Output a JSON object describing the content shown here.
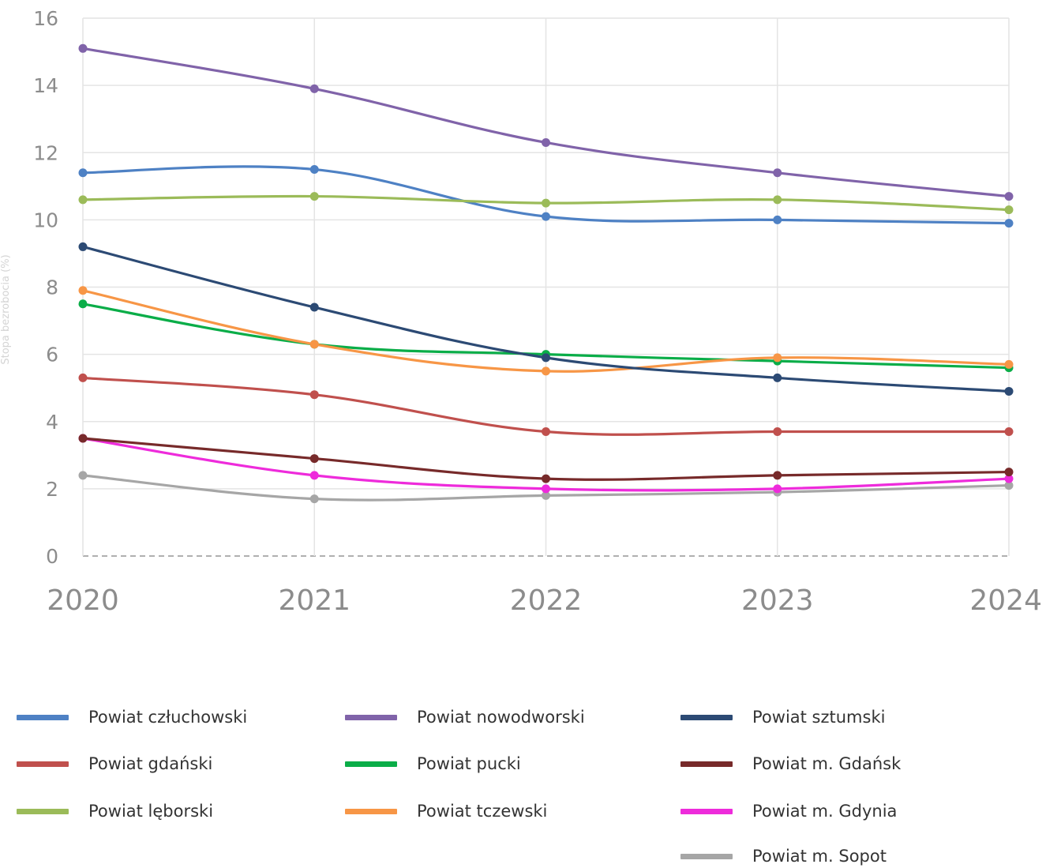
{
  "chart_data": {
    "type": "line",
    "ylabel": "Stopa bezrobocia (%)",
    "xlabel": "",
    "x": [
      "2020",
      "2021",
      "2022",
      "2023",
      "2024"
    ],
    "ylim": [
      0,
      16
    ],
    "yticks": [
      "0",
      "2",
      "4",
      "6",
      "8",
      "10",
      "12",
      "14",
      "16"
    ],
    "grid": true,
    "legend_position": "bottom",
    "series": [
      {
        "name": "Powiat człuchowski",
        "color": "#4e81c4",
        "values": [
          11.4,
          11.5,
          10.1,
          10.0,
          9.9
        ]
      },
      {
        "name": "Powiat nowodworski",
        "color": "#8063a9",
        "values": [
          15.1,
          13.9,
          12.3,
          11.4,
          10.7
        ]
      },
      {
        "name": "Powiat sztumski",
        "color": "#2c4a74",
        "values": [
          9.2,
          7.4,
          5.9,
          5.3,
          4.9
        ]
      },
      {
        "name": "Powiat gdański",
        "color": "#c0504d",
        "values": [
          5.3,
          4.8,
          3.7,
          3.7,
          3.7
        ]
      },
      {
        "name": "Powiat pucki",
        "color": "#0aad48",
        "values": [
          7.5,
          6.3,
          6.0,
          5.8,
          5.6
        ]
      },
      {
        "name": "Powiat m. Gdańsk",
        "color": "#772a2a",
        "values": [
          3.5,
          2.9,
          2.3,
          2.4,
          2.5
        ]
      },
      {
        "name": "Powiat lęborski",
        "color": "#9bbb59",
        "values": [
          10.6,
          10.7,
          10.5,
          10.6,
          10.3
        ]
      },
      {
        "name": "Powiat tczewski",
        "color": "#f79646",
        "values": [
          7.9,
          6.3,
          5.5,
          5.9,
          5.7
        ]
      },
      {
        "name": "Powiat m. Gdynia",
        "color": "#ee2bdb",
        "values": [
          3.5,
          2.4,
          2.0,
          2.0,
          2.3
        ]
      },
      {
        "name": "Powiat m. Sopot",
        "color": "#a6a6a6",
        "values": [
          2.4,
          1.7,
          1.8,
          1.9,
          2.1
        ]
      }
    ]
  }
}
